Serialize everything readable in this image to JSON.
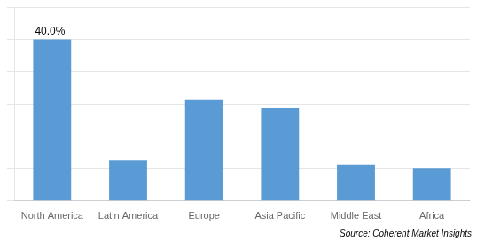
{
  "chart_data": {
    "type": "bar",
    "categories": [
      "North America",
      "Latin America",
      "Europe",
      "Asia Pacific",
      "Middle East",
      "Africa"
    ],
    "values": [
      40.0,
      10.0,
      25.0,
      23.0,
      9.0,
      8.0
    ],
    "color": "#5b9bd5",
    "ylim": [
      0,
      48
    ],
    "yticks": [
      0,
      8,
      16,
      24,
      32,
      40,
      48
    ],
    "grid": true,
    "tick_labels": "x",
    "annotations": [
      {
        "text": "40.0%",
        "category": "North America"
      },
      {
        "text": "Source: Coherent Market Insights"
      }
    ]
  }
}
